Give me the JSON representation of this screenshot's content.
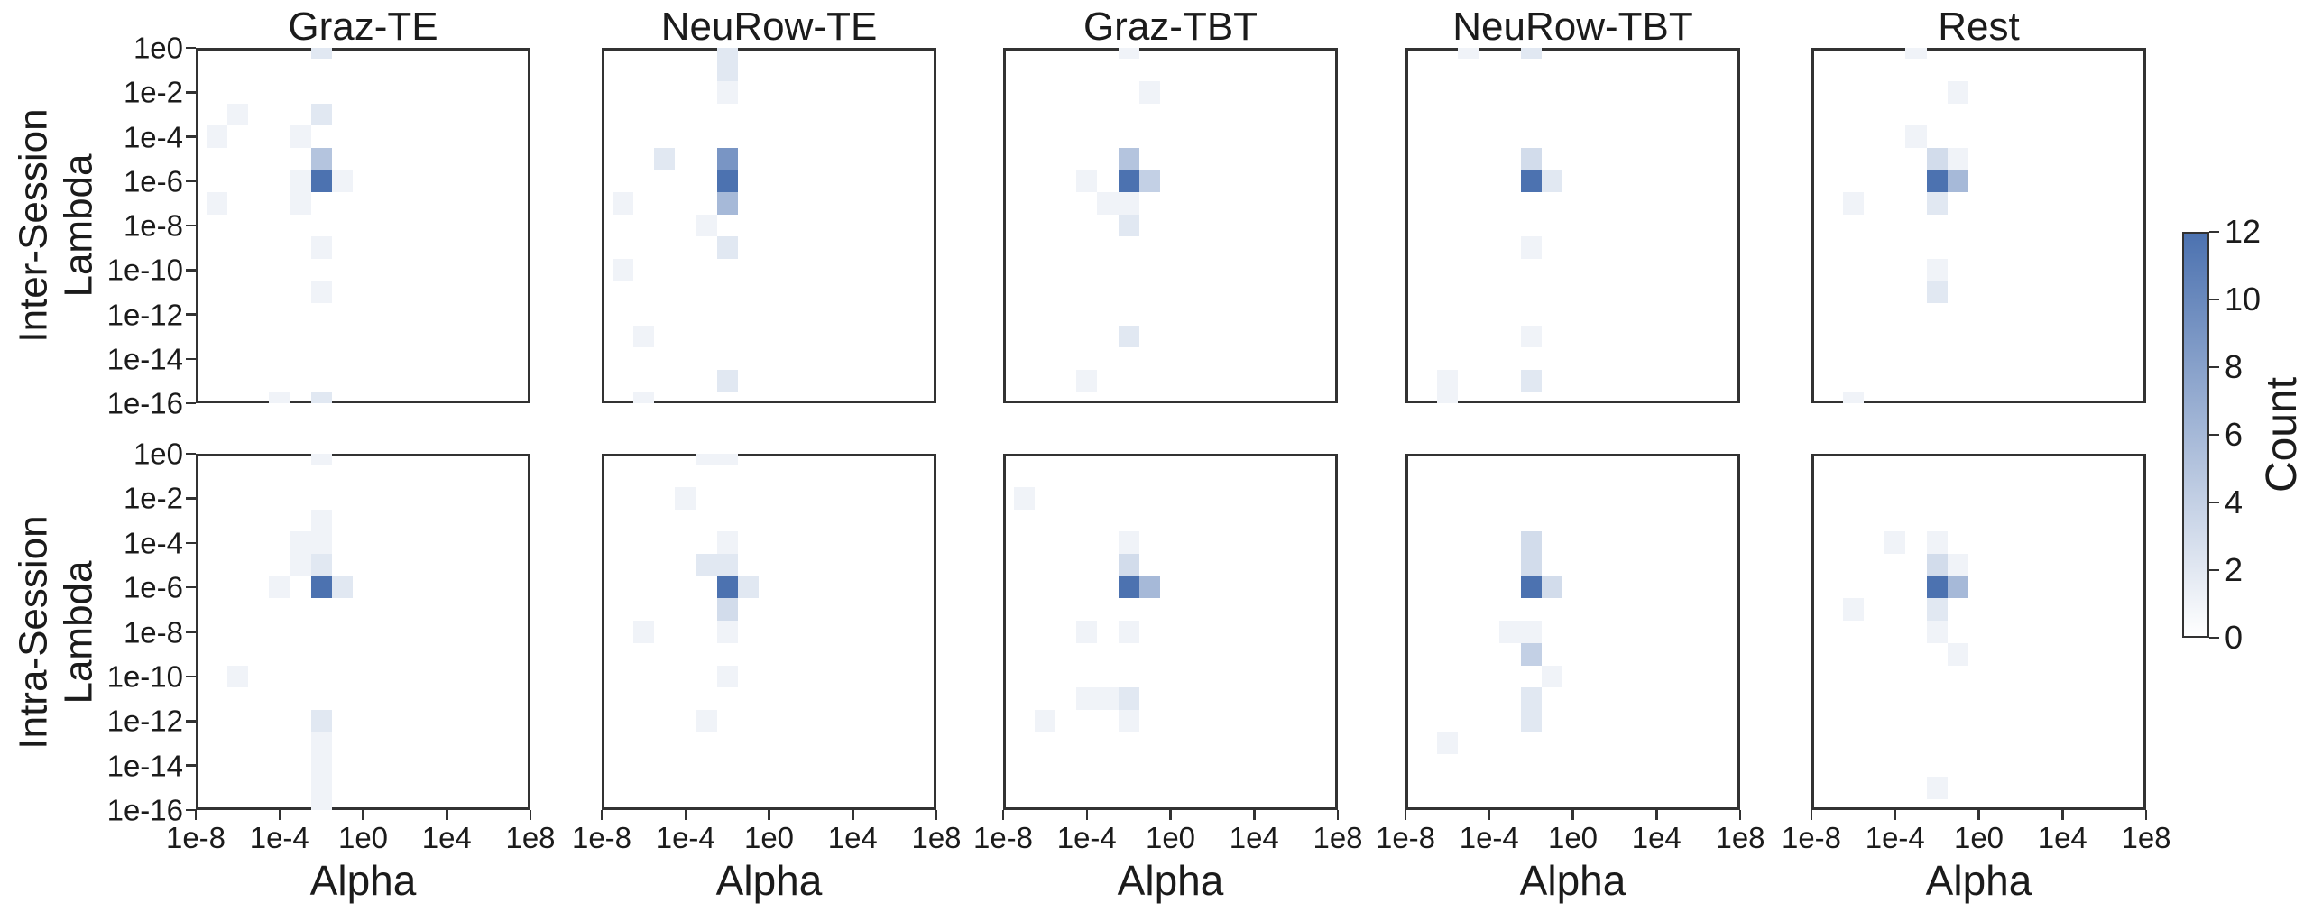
{
  "chart_data": {
    "type": "heatmap",
    "description": "Grid of 2x5 two-dimensional histograms of selected hyperparameters (Alpha vs Lambda) per condition, counts shown as blue shading",
    "columns": [
      "Graz-TE",
      "NeuRow-TE",
      "Graz-TBT",
      "NeuRow-TBT",
      "Rest"
    ],
    "rows": [
      "Inter-Session",
      "Intra-Session"
    ],
    "xlabel": "Alpha",
    "ylabel_line2": "Lambda",
    "row_labels": [
      {
        "line1": "Inter-Session",
        "line2": "Lambda"
      },
      {
        "line1": "Intra-Session",
        "line2": "Lambda"
      }
    ],
    "x_tick_labels": [
      "1e-8",
      "1e-4",
      "1e0",
      "1e4",
      "1e8"
    ],
    "y_tick_labels": [
      "1e0",
      "1e-2",
      "1e-4",
      "1e-6",
      "1e-8",
      "1e-10",
      "1e-12",
      "1e-14",
      "1e-16"
    ],
    "alpha_exponent_range": [
      -8,
      8
    ],
    "lambda_exponent_range": [
      0,
      -16
    ],
    "grid_on": false,
    "colorbar": {
      "label": "Count",
      "min": 0,
      "max": 12,
      "tick_values": [
        0,
        2,
        4,
        6,
        8,
        10,
        12
      ],
      "min_color": "#ffffff",
      "max_color": "#4C72B0"
    },
    "panels": [
      {
        "condition": "Graz-TE",
        "session": "Inter-Session",
        "cells": [
          [
            -2,
            0,
            2
          ],
          [
            -6,
            -3,
            1
          ],
          [
            -2,
            -3,
            2
          ],
          [
            -7,
            -4,
            1
          ],
          [
            -3,
            -4,
            1
          ],
          [
            -2,
            -5,
            5
          ],
          [
            -3,
            -6,
            1
          ],
          [
            -2,
            -6,
            12
          ],
          [
            -1,
            -6,
            1
          ],
          [
            -3,
            -7,
            1
          ],
          [
            -7,
            -7,
            1
          ],
          [
            -2,
            -9,
            1
          ],
          [
            -2,
            -11,
            1
          ],
          [
            -4,
            -16,
            1
          ],
          [
            -2,
            -16,
            2
          ]
        ]
      },
      {
        "condition": "NeuRow-TE",
        "session": "Inter-Session",
        "cells": [
          [
            -2,
            0,
            2
          ],
          [
            -2,
            -1,
            2
          ],
          [
            -2,
            -2,
            1
          ],
          [
            -5,
            -5,
            2
          ],
          [
            -2,
            -5,
            9
          ],
          [
            -2,
            -6,
            12
          ],
          [
            -2,
            -7,
            6
          ],
          [
            -7,
            -7,
            1
          ],
          [
            -3,
            -8,
            1
          ],
          [
            -2,
            -9,
            2
          ],
          [
            -7,
            -10,
            1
          ],
          [
            -6,
            -13,
            1
          ],
          [
            -2,
            -15,
            2
          ],
          [
            -6,
            -16,
            1
          ]
        ]
      },
      {
        "condition": "Graz-TBT",
        "session": "Inter-Session",
        "cells": [
          [
            -2,
            0,
            1
          ],
          [
            -1,
            -2,
            1
          ],
          [
            -2,
            -5,
            5
          ],
          [
            -4,
            -6,
            1
          ],
          [
            -2,
            -6,
            12
          ],
          [
            -1,
            -6,
            4
          ],
          [
            -3,
            -7,
            1
          ],
          [
            -2,
            -7,
            1
          ],
          [
            -2,
            -8,
            2
          ],
          [
            -2,
            -13,
            2
          ],
          [
            -4,
            -15,
            1
          ]
        ]
      },
      {
        "condition": "NeuRow-TBT",
        "session": "Inter-Session",
        "cells": [
          [
            -5,
            0,
            1
          ],
          [
            -2,
            0,
            2
          ],
          [
            -2,
            -5,
            3
          ],
          [
            -2,
            -6,
            12
          ],
          [
            -1,
            -6,
            2
          ],
          [
            -2,
            -9,
            1
          ],
          [
            -2,
            -13,
            1
          ],
          [
            -6,
            -15,
            1
          ],
          [
            -2,
            -15,
            2
          ],
          [
            -6,
            -16,
            1
          ]
        ]
      },
      {
        "condition": "Rest",
        "session": "Inter-Session",
        "cells": [
          [
            -3,
            0,
            1
          ],
          [
            -1,
            -2,
            1
          ],
          [
            -3,
            -4,
            1
          ],
          [
            -2,
            -5,
            3
          ],
          [
            -1,
            -5,
            1
          ],
          [
            -2,
            -6,
            12
          ],
          [
            -1,
            -6,
            6
          ],
          [
            -6,
            -7,
            1
          ],
          [
            -2,
            -7,
            2
          ],
          [
            -2,
            -10,
            1
          ],
          [
            -2,
            -11,
            2
          ],
          [
            -6,
            -16,
            1
          ]
        ]
      },
      {
        "condition": "Graz-TE",
        "session": "Intra-Session",
        "cells": [
          [
            -2,
            0,
            1
          ],
          [
            -2,
            -3,
            1
          ],
          [
            -3,
            -4,
            1
          ],
          [
            -2,
            -4,
            1
          ],
          [
            -3,
            -5,
            1
          ],
          [
            -2,
            -5,
            2
          ],
          [
            -4,
            -6,
            1
          ],
          [
            -2,
            -6,
            12
          ],
          [
            -1,
            -6,
            2
          ],
          [
            -6,
            -10,
            1
          ],
          [
            -2,
            -12,
            2
          ],
          [
            -2,
            -13,
            1
          ],
          [
            -2,
            -14,
            1
          ],
          [
            -2,
            -15,
            1
          ],
          [
            -2,
            -16,
            1
          ]
        ]
      },
      {
        "condition": "NeuRow-TE",
        "session": "Intra-Session",
        "cells": [
          [
            -3,
            0,
            1
          ],
          [
            -2,
            0,
            1
          ],
          [
            -4,
            -2,
            1
          ],
          [
            -2,
            -4,
            1
          ],
          [
            -3,
            -5,
            2
          ],
          [
            -2,
            -5,
            2
          ],
          [
            -2,
            -6,
            12
          ],
          [
            -1,
            -6,
            2
          ],
          [
            -2,
            -7,
            3
          ],
          [
            -6,
            -8,
            1
          ],
          [
            -2,
            -8,
            1
          ],
          [
            -2,
            -10,
            1
          ],
          [
            -3,
            -12,
            1
          ]
        ]
      },
      {
        "condition": "Graz-TBT",
        "session": "Intra-Session",
        "cells": [
          [
            -7,
            -2,
            1
          ],
          [
            -2,
            -4,
            1
          ],
          [
            -2,
            -5,
            3
          ],
          [
            -2,
            -6,
            12
          ],
          [
            -1,
            -6,
            6
          ],
          [
            -4,
            -8,
            1
          ],
          [
            -2,
            -8,
            1
          ],
          [
            -4,
            -11,
            1
          ],
          [
            -3,
            -11,
            1
          ],
          [
            -2,
            -11,
            2
          ],
          [
            -6,
            -12,
            1
          ],
          [
            -2,
            -12,
            1
          ]
        ]
      },
      {
        "condition": "NeuRow-TBT",
        "session": "Intra-Session",
        "cells": [
          [
            -2,
            -4,
            3
          ],
          [
            -2,
            -5,
            3
          ],
          [
            -2,
            -6,
            12
          ],
          [
            -1,
            -6,
            3
          ],
          [
            -3,
            -8,
            1
          ],
          [
            -2,
            -8,
            1
          ],
          [
            -2,
            -9,
            4
          ],
          [
            -1,
            -10,
            1
          ],
          [
            -2,
            -11,
            2
          ],
          [
            -2,
            -12,
            2
          ],
          [
            -6,
            -13,
            1
          ]
        ]
      },
      {
        "condition": "Rest",
        "session": "Intra-Session",
        "cells": [
          [
            -4,
            -4,
            1
          ],
          [
            -2,
            -4,
            1
          ],
          [
            -2,
            -5,
            3
          ],
          [
            -1,
            -5,
            1
          ],
          [
            -2,
            -6,
            12
          ],
          [
            -1,
            -6,
            6
          ],
          [
            -6,
            -7,
            1
          ],
          [
            -2,
            -7,
            2
          ],
          [
            -2,
            -8,
            1
          ],
          [
            -1,
            -9,
            1
          ],
          [
            -2,
            -15,
            1
          ]
        ]
      }
    ]
  }
}
